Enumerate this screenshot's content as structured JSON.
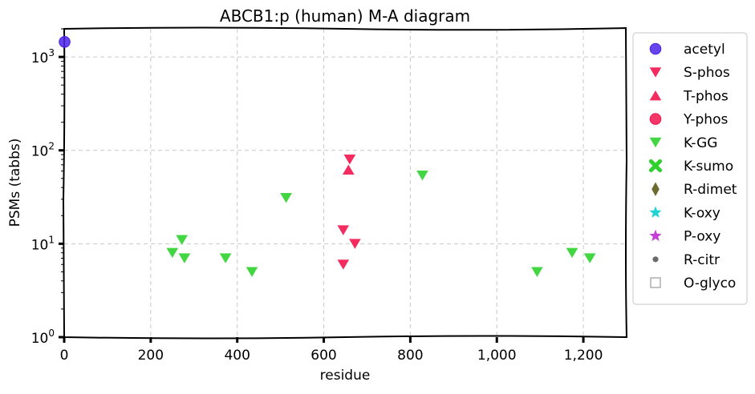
{
  "chart_data": {
    "type": "scatter",
    "title": "ABCB1:p (human) M-A diagram",
    "xlabel": "residue",
    "ylabel": "PSMs (tabbs)",
    "xlim": [
      0,
      1300
    ],
    "ylim": [
      1,
      2000
    ],
    "yscale": "log",
    "grid": true,
    "legend_position": "outside-right",
    "x_ticks": [
      {
        "value": 0,
        "label": "0"
      },
      {
        "value": 200,
        "label": "200"
      },
      {
        "value": 400,
        "label": "400"
      },
      {
        "value": 600,
        "label": "600"
      },
      {
        "value": 800,
        "label": "800"
      },
      {
        "value": 1000,
        "label": "1,000"
      },
      {
        "value": 1200,
        "label": "1,200"
      }
    ],
    "y_ticks": [
      {
        "value": 1,
        "base": "10",
        "exp": "0"
      },
      {
        "value": 10,
        "base": "10",
        "exp": "1"
      },
      {
        "value": 100,
        "base": "10",
        "exp": "2"
      },
      {
        "value": 1000,
        "base": "10",
        "exp": "3"
      }
    ],
    "series": [
      {
        "name": "acetyl",
        "marker": "circle",
        "color": "#4B22E6",
        "points": [
          {
            "x": 1,
            "y": 1450
          }
        ]
      },
      {
        "name": "S-phos",
        "marker": "triangle-down",
        "color": "#F2144E",
        "points": [
          {
            "x": 645,
            "y": 14
          },
          {
            "x": 645,
            "y": 6
          },
          {
            "x": 660,
            "y": 80
          },
          {
            "x": 672,
            "y": 10
          }
        ]
      },
      {
        "name": "T-phos",
        "marker": "triangle-up",
        "color": "#F2144E",
        "points": [
          {
            "x": 657,
            "y": 62
          }
        ]
      },
      {
        "name": "Y-phos",
        "marker": "circle",
        "color": "#F2144E",
        "points": []
      },
      {
        "name": "K-GG",
        "marker": "triangle-down",
        "color": "#2FD12F",
        "points": [
          {
            "x": 250,
            "y": 8
          },
          {
            "x": 272,
            "y": 11
          },
          {
            "x": 278,
            "y": 7
          },
          {
            "x": 373,
            "y": 7
          },
          {
            "x": 434,
            "y": 5
          },
          {
            "x": 513,
            "y": 31
          },
          {
            "x": 828,
            "y": 54
          },
          {
            "x": 1093,
            "y": 5
          },
          {
            "x": 1174,
            "y": 8
          },
          {
            "x": 1215,
            "y": 7
          }
        ]
      },
      {
        "name": "K-sumo",
        "marker": "x",
        "color": "#2FD12F",
        "points": []
      },
      {
        "name": "R-dimet",
        "marker": "diamond",
        "color": "#6B6B2E",
        "points": []
      },
      {
        "name": "K-oxy",
        "marker": "star",
        "color": "#22D3D3",
        "points": []
      },
      {
        "name": "P-oxy",
        "marker": "star",
        "color": "#C53CD6",
        "points": []
      },
      {
        "name": "R-citr",
        "marker": "dot",
        "color": "#6b6b6b",
        "points": []
      },
      {
        "name": "O-glyco",
        "marker": "square-open",
        "color": "#9a9a9a",
        "points": []
      }
    ]
  }
}
